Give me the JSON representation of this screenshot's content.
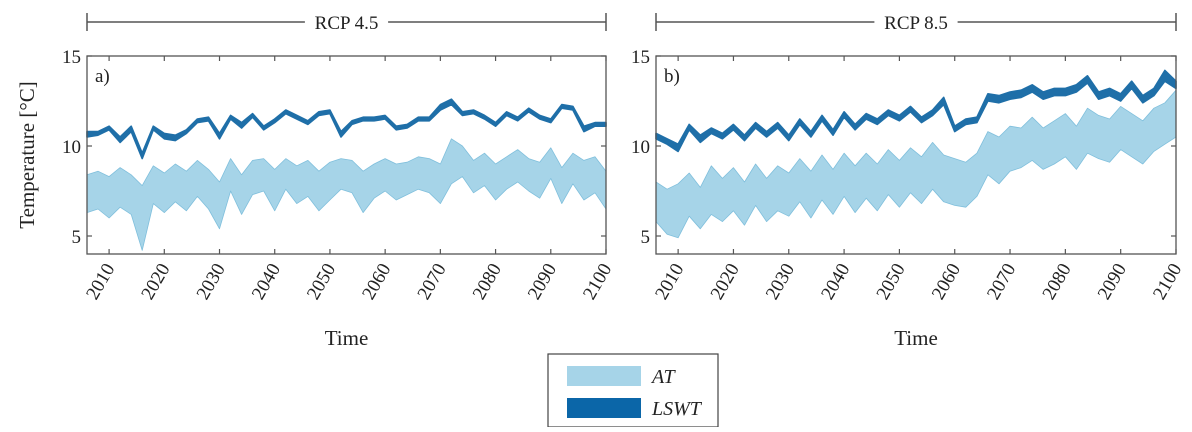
{
  "colors": {
    "at_band": "#a6d4e8",
    "at_edge": "#7fbfdc",
    "lswt": "#1f6fa8",
    "lswt_legend": "#0b66a8",
    "axis": "#555555",
    "text": "#222222"
  },
  "legend": {
    "items": [
      {
        "label": "AT",
        "color": "#a6d4e8"
      },
      {
        "label": "LSWT",
        "color": "#0b66a8"
      }
    ]
  },
  "chart_data": [
    {
      "type": "area",
      "panel_label": "a)",
      "title": "RCP 4.5",
      "xlabel": "Time",
      "ylabel": "Temperature [°C]",
      "xlim": [
        2006,
        2100
      ],
      "ylim": [
        4,
        15
      ],
      "xticks": [
        2010,
        2020,
        2030,
        2040,
        2050,
        2060,
        2070,
        2080,
        2090,
        2100
      ],
      "yticks": [
        5,
        10,
        15
      ],
      "grid": false,
      "x_step": 2,
      "x_start": 2006,
      "series": [
        {
          "name": "AT",
          "kind": "band",
          "lower": [
            6.3,
            6.5,
            6.0,
            6.6,
            6.2,
            4.2,
            6.8,
            6.3,
            6.9,
            6.4,
            7.2,
            6.5,
            5.4,
            7.5,
            6.2,
            7.3,
            7.5,
            6.4,
            7.6,
            6.8,
            7.2,
            6.4,
            7.0,
            7.6,
            7.4,
            6.3,
            7.1,
            7.5,
            7.0,
            7.3,
            7.6,
            7.4,
            6.8,
            7.9,
            8.3,
            7.4,
            7.8,
            7.0,
            7.6,
            8.0,
            7.5,
            7.1,
            8.2,
            6.8,
            7.9,
            7.0,
            7.4,
            6.5
          ],
          "upper": [
            8.4,
            8.6,
            8.3,
            8.8,
            8.4,
            7.8,
            8.9,
            8.5,
            9.0,
            8.6,
            9.2,
            8.7,
            8.0,
            9.3,
            8.4,
            9.2,
            9.3,
            8.7,
            9.3,
            8.9,
            9.2,
            8.6,
            9.1,
            9.3,
            9.2,
            8.6,
            9.0,
            9.3,
            9.0,
            9.1,
            9.4,
            9.3,
            9.0,
            10.4,
            10.0,
            9.2,
            9.6,
            9.0,
            9.4,
            9.8,
            9.3,
            9.1,
            9.9,
            8.8,
            9.6,
            9.2,
            9.4,
            8.6
          ]
        },
        {
          "name": "LSWT",
          "kind": "band",
          "lower": [
            10.5,
            10.6,
            10.9,
            10.2,
            10.8,
            9.3,
            10.9,
            10.4,
            10.3,
            10.7,
            11.3,
            11.4,
            10.4,
            11.5,
            11.0,
            11.6,
            10.9,
            11.3,
            11.8,
            11.5,
            11.2,
            11.7,
            11.8,
            10.5,
            11.2,
            11.4,
            11.4,
            11.5,
            10.9,
            11.0,
            11.4,
            11.4,
            12.0,
            12.3,
            11.7,
            11.8,
            11.5,
            11.1,
            11.7,
            11.4,
            11.9,
            11.5,
            11.3,
            12.1,
            12.0,
            10.8,
            11.1,
            11.1
          ],
          "upper": [
            10.8,
            10.8,
            11.1,
            10.5,
            11.1,
            9.6,
            11.1,
            10.7,
            10.6,
            10.9,
            11.5,
            11.6,
            10.7,
            11.7,
            11.3,
            11.8,
            11.1,
            11.5,
            12.0,
            11.7,
            11.4,
            11.9,
            12.0,
            10.8,
            11.4,
            11.6,
            11.6,
            11.7,
            11.1,
            11.2,
            11.6,
            11.6,
            12.3,
            12.6,
            11.9,
            12.0,
            11.7,
            11.3,
            11.9,
            11.6,
            12.1,
            11.7,
            11.5,
            12.3,
            12.2,
            11.1,
            11.3,
            11.3
          ]
        }
      ]
    },
    {
      "type": "area",
      "panel_label": "b)",
      "title": "RCP 8.5",
      "xlabel": "Time",
      "ylabel": "",
      "xlim": [
        2006,
        2100
      ],
      "ylim": [
        4,
        15
      ],
      "xticks": [
        2010,
        2020,
        2030,
        2040,
        2050,
        2060,
        2070,
        2080,
        2090,
        2100
      ],
      "yticks": [
        5,
        10,
        15
      ],
      "grid": false,
      "x_step": 2,
      "x_start": 2006,
      "series": [
        {
          "name": "AT",
          "kind": "band",
          "lower": [
            5.8,
            5.1,
            4.9,
            6.1,
            5.4,
            6.2,
            5.8,
            6.4,
            5.6,
            6.7,
            5.8,
            6.4,
            6.1,
            6.9,
            6.0,
            7.0,
            6.2,
            7.2,
            6.3,
            7.1,
            6.4,
            7.3,
            6.6,
            7.4,
            6.8,
            7.6,
            6.9,
            6.7,
            6.6,
            7.2,
            8.4,
            7.9,
            8.6,
            8.8,
            9.2,
            8.7,
            9.0,
            9.4,
            8.7,
            9.6,
            9.3,
            9.1,
            9.8,
            9.4,
            9.0,
            9.7,
            10.1,
            10.5
          ],
          "upper": [
            8.0,
            7.6,
            7.9,
            8.5,
            7.7,
            8.9,
            8.2,
            8.8,
            8.0,
            9.0,
            8.2,
            8.9,
            8.5,
            9.3,
            8.6,
            9.5,
            8.7,
            9.6,
            8.9,
            9.6,
            9.0,
            9.8,
            9.2,
            9.9,
            9.4,
            10.2,
            9.5,
            9.3,
            9.1,
            9.6,
            10.8,
            10.5,
            11.1,
            11.0,
            11.6,
            11.0,
            11.4,
            11.8,
            11.1,
            12.1,
            11.7,
            11.5,
            12.2,
            11.8,
            11.4,
            12.1,
            12.4,
            13.1
          ]
        },
        {
          "name": "LSWT",
          "kind": "band",
          "lower": [
            10.4,
            10.1,
            9.7,
            10.9,
            10.2,
            10.7,
            10.4,
            10.9,
            10.3,
            11.0,
            10.5,
            11.0,
            10.3,
            11.2,
            10.5,
            11.4,
            10.6,
            11.6,
            10.9,
            11.5,
            11.2,
            11.7,
            11.4,
            11.9,
            11.3,
            11.7,
            12.3,
            10.8,
            11.2,
            11.3,
            12.5,
            12.4,
            12.6,
            12.7,
            13.0,
            12.6,
            12.8,
            12.8,
            13.0,
            13.5,
            12.6,
            12.8,
            12.5,
            13.2,
            12.4,
            12.8,
            13.6,
            13.2
          ],
          "upper": [
            10.7,
            10.4,
            10.1,
            11.2,
            10.6,
            11.0,
            10.7,
            11.2,
            10.6,
            11.3,
            10.8,
            11.3,
            10.6,
            11.5,
            10.8,
            11.7,
            10.9,
            11.9,
            11.2,
            11.8,
            11.5,
            12.0,
            11.7,
            12.2,
            11.6,
            12.0,
            12.7,
            11.1,
            11.5,
            11.6,
            12.9,
            12.8,
            13.0,
            13.1,
            13.4,
            13.0,
            13.2,
            13.2,
            13.4,
            13.9,
            13.0,
            13.2,
            12.9,
            13.6,
            12.8,
            13.2,
            14.2,
            13.6
          ]
        }
      ]
    }
  ]
}
